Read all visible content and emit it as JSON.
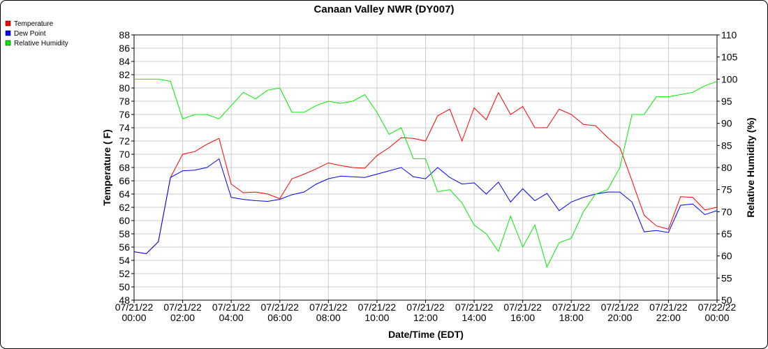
{
  "chart_data": {
    "type": "line",
    "title": "Canaan Valley NWR (DY007)",
    "xlabel": "Date/Time (EDT)",
    "ylabel": "Temperature ( F)",
    "y2label": "Relative Humidity (%)",
    "grid": true,
    "legend": "top-left",
    "x": [
      0,
      0.5,
      1,
      1.5,
      2,
      2.5,
      3,
      3.5,
      4,
      4.5,
      5,
      5.5,
      6,
      6.5,
      7,
      7.5,
      8,
      8.5,
      9,
      9.5,
      10,
      10.5,
      11,
      11.5,
      12,
      12.5,
      13,
      13.5,
      14,
      14.5,
      15,
      15.5,
      16,
      16.5,
      17,
      17.5,
      18,
      18.5,
      19,
      19.5,
      20,
      20.5,
      21,
      21.5,
      22,
      22.5,
      23,
      23.5,
      24
    ],
    "xlim": [
      0,
      24
    ],
    "xticks": [
      {
        "value": 0,
        "label": "07/21/22 00:00"
      },
      {
        "value": 2,
        "label": "07/21/22 02:00"
      },
      {
        "value": 4,
        "label": "07/21/22 04:00"
      },
      {
        "value": 6,
        "label": "07/21/22 06:00"
      },
      {
        "value": 8,
        "label": "07/21/22 08:00"
      },
      {
        "value": 10,
        "label": "07/21/22 10:00"
      },
      {
        "value": 12,
        "label": "07/21/22 12:00"
      },
      {
        "value": 14,
        "label": "07/21/22 14:00"
      },
      {
        "value": 16,
        "label": "07/21/22 16:00"
      },
      {
        "value": 18,
        "label": "07/21/22 18:00"
      },
      {
        "value": 20,
        "label": "07/21/22 20:00"
      },
      {
        "value": 22,
        "label": "07/21/22 22:00"
      },
      {
        "value": 24,
        "label": "07/22/22 00:00"
      }
    ],
    "ylim": [
      48,
      88
    ],
    "yticks": [
      48,
      50,
      52,
      54,
      56,
      58,
      60,
      62,
      64,
      66,
      68,
      70,
      72,
      74,
      76,
      78,
      80,
      82,
      84,
      86,
      88
    ],
    "y2lim": [
      50,
      110
    ],
    "y2ticks": [
      50,
      55,
      60,
      65,
      70,
      75,
      80,
      85,
      90,
      95,
      100,
      105,
      110
    ],
    "series": [
      {
        "name": "Temperature",
        "color": "#ff0000",
        "values": [
          55.3,
          55,
          56.8,
          66.5,
          70,
          70.4,
          71.5,
          72.4,
          65.5,
          64.2,
          64.3,
          64,
          63.3,
          66.3,
          67,
          67.8,
          68.7,
          68.3,
          68,
          67.9,
          69.8,
          71,
          72.5,
          72.4,
          72,
          75.8,
          76.8,
          72,
          77,
          75.2,
          79.3,
          76,
          77.2,
          74,
          74,
          76.8,
          76,
          74.5,
          74.3,
          72.5,
          71,
          66,
          60.8,
          59.2,
          58.7,
          63.6,
          63.5,
          61.6,
          62
        ]
      },
      {
        "name": "Dew Point",
        "color": "#0000ff",
        "values": [
          55.3,
          55,
          56.8,
          66.5,
          67.5,
          67.6,
          68,
          69.3,
          63.5,
          63.2,
          63,
          62.9,
          63.2,
          63.9,
          64.3,
          65.5,
          66.3,
          66.7,
          66.6,
          66.5,
          67,
          67.5,
          68,
          66.6,
          66.3,
          68,
          66.5,
          65.5,
          65.7,
          64,
          65.8,
          62.8,
          64.8,
          63,
          64.1,
          61.5,
          62.8,
          63.5,
          64,
          64.3,
          64.3,
          62.8,
          58.3,
          58.5,
          58.2,
          62.3,
          62.5,
          60.9,
          61.5
        ]
      },
      {
        "name": "Relative Humidity",
        "color": "#00ee00",
        "axis": "y2",
        "values": [
          100,
          100,
          100,
          99.5,
          91,
          92,
          92,
          91,
          94,
          97,
          95.5,
          97.5,
          98,
          92.5,
          92.5,
          94,
          95,
          94.5,
          95,
          96.5,
          92.5,
          87.5,
          89,
          82,
          82,
          74.5,
          75,
          72,
          67,
          65,
          61,
          69,
          62,
          67,
          57.5,
          63,
          64,
          70,
          74,
          75,
          80,
          92,
          92,
          96,
          96,
          96.5,
          97,
          98.5,
          99.5
        ]
      }
    ]
  }
}
